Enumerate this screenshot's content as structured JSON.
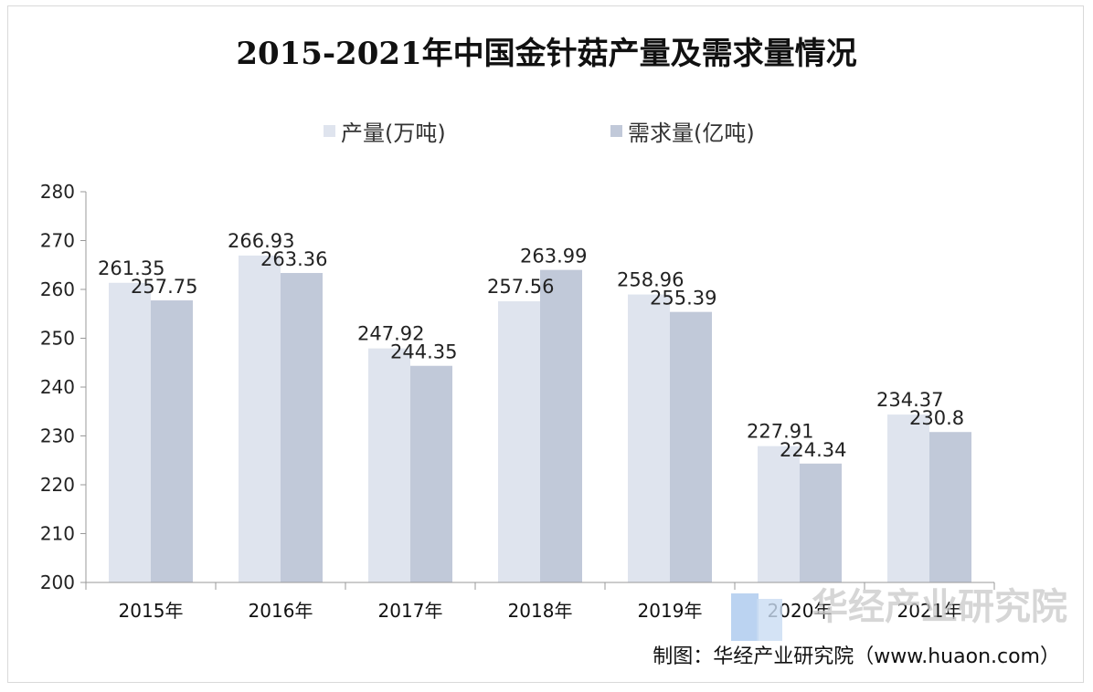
{
  "chart_data": {
    "type": "bar",
    "title": "2015-2021年中国金针菇产量及需求量情况",
    "categories": [
      "2015年",
      "2016年",
      "2017年",
      "2018年",
      "2019年",
      "2020年",
      "2021年"
    ],
    "series": [
      {
        "name": "产量(万吨)",
        "color": "#dfe4ee",
        "values": [
          261.35,
          266.93,
          247.92,
          257.56,
          258.96,
          227.91,
          234.37
        ],
        "labels": [
          "261.35",
          "266.93",
          "247.92",
          "257.56",
          "258.96",
          "227.91",
          "234.37"
        ]
      },
      {
        "name": "需求量(亿吨)",
        "color": "#c1c9d9",
        "values": [
          257.75,
          263.36,
          244.35,
          263.99,
          255.39,
          224.34,
          230.8
        ],
        "labels": [
          "257.75",
          "263.36",
          "244.35",
          "263.99",
          "255.39",
          "224.34",
          "230.8"
        ]
      }
    ],
    "ylim": [
      200,
      280
    ],
    "yticks": [
      "200",
      "210",
      "220",
      "230",
      "240",
      "250",
      "260",
      "270",
      "280"
    ],
    "grid": false,
    "legend_position": "top-center"
  },
  "source_note": "制图：华经产业研究院（www.huaon.com）",
  "watermark": {
    "name": "华经产业研究院",
    "url": "www.huaon.com"
  }
}
